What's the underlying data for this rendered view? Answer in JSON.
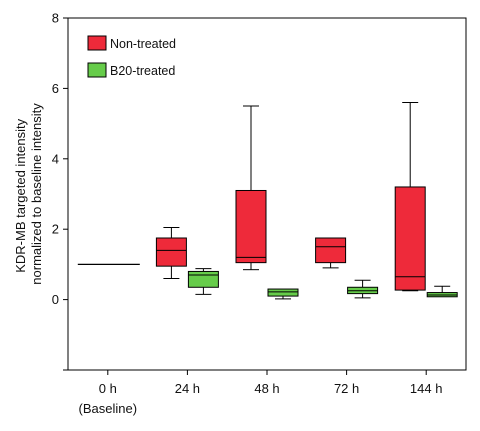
{
  "chart_data": {
    "type": "box",
    "ylabel_lines": [
      "KDR-MB targeted intensity",
      "normalized to baseline intensity"
    ],
    "ylim": [
      -2,
      8
    ],
    "yticks": [
      0,
      2,
      4,
      6,
      8
    ],
    "categories": [
      "0 h",
      "24 h",
      "48 h",
      "72 h",
      "144 h"
    ],
    "category_sublabels": [
      "(Baseline)",
      "",
      "",
      "",
      ""
    ],
    "legend": {
      "position": "top-left"
    },
    "baseline": {
      "category": "0 h",
      "value": 1.0
    },
    "series": [
      {
        "name": "Non-treated",
        "color": "#ee2a3a",
        "boxes": [
          {
            "category": "24 h",
            "whisker_low": 0.6,
            "q1": 0.95,
            "median": 1.4,
            "q3": 1.75,
            "whisker_high": 2.05
          },
          {
            "category": "48 h",
            "whisker_low": 0.85,
            "q1": 1.05,
            "median": 1.2,
            "q3": 3.1,
            "whisker_high": 5.5
          },
          {
            "category": "72 h",
            "whisker_low": 0.9,
            "q1": 1.05,
            "median": 1.5,
            "q3": 1.75,
            "whisker_high": null
          },
          {
            "category": "144 h",
            "whisker_low": 0.25,
            "q1": 0.27,
            "median": 0.65,
            "q3": 3.2,
            "whisker_high": 5.6
          }
        ]
      },
      {
        "name": "B20-treated",
        "color": "#66cc4a",
        "boxes": [
          {
            "category": "24 h",
            "whisker_low": 0.15,
            "q1": 0.35,
            "median": 0.7,
            "q3": 0.8,
            "whisker_high": 0.88
          },
          {
            "category": "48 h",
            "whisker_low": 0.02,
            "q1": 0.1,
            "median": 0.22,
            "q3": 0.3,
            "whisker_high": null
          },
          {
            "category": "72 h",
            "whisker_low": 0.05,
            "q1": 0.17,
            "median": 0.25,
            "q3": 0.35,
            "whisker_high": 0.55
          },
          {
            "category": "144 h",
            "whisker_low": null,
            "q1": 0.08,
            "median": 0.13,
            "q3": 0.2,
            "whisker_high": 0.38
          }
        ]
      }
    ]
  }
}
